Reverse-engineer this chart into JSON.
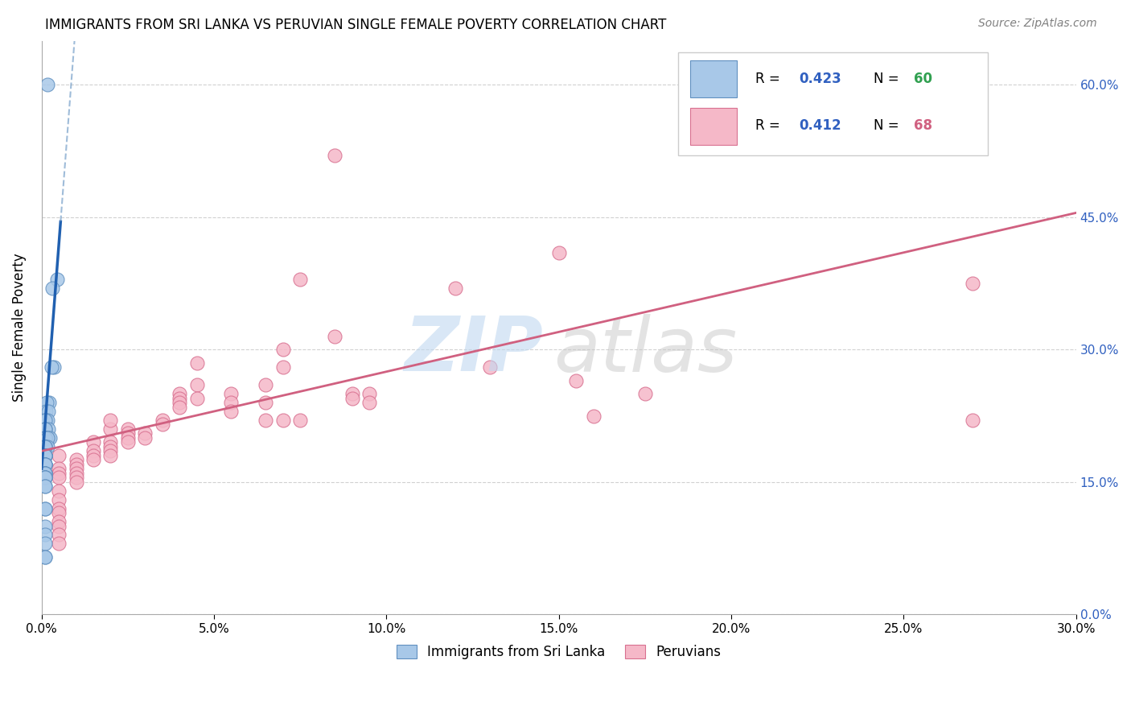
{
  "title": "IMMIGRANTS FROM SRI LANKA VS PERUVIAN SINGLE FEMALE POVERTY CORRELATION CHART",
  "source": "Source: ZipAtlas.com",
  "ylabel": "Single Female Poverty",
  "legend_label1": "Immigrants from Sri Lanka",
  "legend_label2": "Peruvians",
  "blue_fill": "#a8c8e8",
  "pink_fill": "#f5b8c8",
  "blue_edge": "#6090c0",
  "pink_edge": "#d87090",
  "blue_line": "#2060b0",
  "pink_line": "#d06080",
  "stat_text_blue": "#3060c0",
  "stat_text_green": "#30a050",
  "stat_text_pink": "#d06080",
  "watermark_zip_color": "#c0d8f0",
  "watermark_atlas_color": "#c8c8c8",
  "sri_lanka_x": [
    0.0018,
    0.0045,
    0.003,
    0.0035,
    0.0028,
    0.0022,
    0.0015,
    0.0012,
    0.002,
    0.001,
    0.0012,
    0.0018,
    0.001,
    0.001,
    0.002,
    0.001,
    0.001,
    0.002,
    0.0025,
    0.001,
    0.001,
    0.001,
    0.001,
    0.001,
    0.0018,
    0.001,
    0.001,
    0.001,
    0.0018,
    0.001,
    0.001,
    0.001,
    0.001,
    0.001,
    0.001,
    0.001,
    0.001,
    0.001,
    0.001,
    0.001,
    0.001,
    0.001,
    0.001,
    0.001,
    0.001,
    0.001,
    0.001,
    0.001,
    0.001,
    0.001,
    0.001,
    0.001,
    0.001,
    0.001,
    0.001,
    0.001,
    0.001,
    0.001,
    0.001,
    0.001
  ],
  "sri_lanka_y": [
    0.6,
    0.38,
    0.37,
    0.28,
    0.28,
    0.24,
    0.24,
    0.23,
    0.23,
    0.22,
    0.22,
    0.22,
    0.22,
    0.21,
    0.21,
    0.21,
    0.21,
    0.2,
    0.2,
    0.2,
    0.2,
    0.2,
    0.2,
    0.2,
    0.2,
    0.19,
    0.19,
    0.19,
    0.19,
    0.19,
    0.19,
    0.18,
    0.18,
    0.18,
    0.18,
    0.18,
    0.18,
    0.18,
    0.17,
    0.17,
    0.17,
    0.17,
    0.17,
    0.16,
    0.16,
    0.16,
    0.16,
    0.155,
    0.155,
    0.155,
    0.155,
    0.145,
    0.145,
    0.12,
    0.12,
    0.1,
    0.09,
    0.08,
    0.065,
    0.065
  ],
  "peruvian_x": [
    0.15,
    0.12,
    0.085,
    0.13,
    0.075,
    0.175,
    0.155,
    0.085,
    0.16,
    0.07,
    0.09,
    0.045,
    0.095,
    0.09,
    0.07,
    0.065,
    0.095,
    0.065,
    0.07,
    0.075,
    0.055,
    0.045,
    0.045,
    0.055,
    0.055,
    0.065,
    0.04,
    0.04,
    0.04,
    0.04,
    0.035,
    0.035,
    0.03,
    0.03,
    0.025,
    0.025,
    0.025,
    0.025,
    0.02,
    0.02,
    0.02,
    0.02,
    0.02,
    0.02,
    0.015,
    0.015,
    0.015,
    0.015,
    0.01,
    0.01,
    0.01,
    0.01,
    0.01,
    0.01,
    0.005,
    0.005,
    0.005,
    0.005,
    0.005,
    0.005,
    0.005,
    0.005,
    0.005,
    0.005,
    0.005,
    0.005,
    0.27,
    0.27
  ],
  "peruvian_y": [
    0.41,
    0.37,
    0.52,
    0.28,
    0.38,
    0.25,
    0.265,
    0.315,
    0.225,
    0.3,
    0.25,
    0.285,
    0.25,
    0.245,
    0.28,
    0.26,
    0.24,
    0.24,
    0.22,
    0.22,
    0.25,
    0.26,
    0.245,
    0.24,
    0.23,
    0.22,
    0.25,
    0.245,
    0.24,
    0.235,
    0.22,
    0.215,
    0.205,
    0.2,
    0.21,
    0.205,
    0.2,
    0.195,
    0.21,
    0.22,
    0.195,
    0.19,
    0.185,
    0.18,
    0.195,
    0.185,
    0.18,
    0.175,
    0.175,
    0.17,
    0.165,
    0.16,
    0.155,
    0.15,
    0.18,
    0.165,
    0.16,
    0.155,
    0.14,
    0.13,
    0.12,
    0.115,
    0.105,
    0.1,
    0.09,
    0.08,
    0.375,
    0.22
  ],
  "xlim": [
    0.0,
    0.3
  ],
  "ylim": [
    0.0,
    0.65
  ],
  "xticks": [
    0.0,
    0.05,
    0.1,
    0.15,
    0.2,
    0.25,
    0.3
  ],
  "yticks": [
    0.0,
    0.15,
    0.3,
    0.45,
    0.6
  ],
  "blue_trend_x": [
    0.0,
    0.0055
  ],
  "blue_trend_y": [
    0.165,
    0.445
  ],
  "pink_trend_x": [
    0.0,
    0.3
  ],
  "pink_trend_y": [
    0.185,
    0.455
  ]
}
